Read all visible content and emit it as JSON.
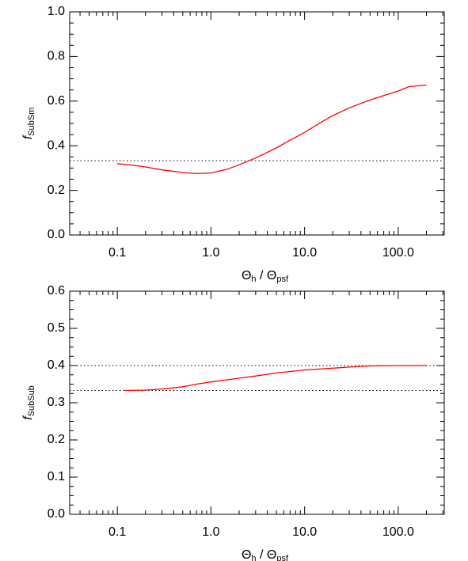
{
  "chart_data": [
    {
      "type": "line",
      "xlog": true,
      "color": "#ff0000",
      "x": [
        0.1,
        0.15,
        0.2,
        0.3,
        0.5,
        0.7,
        1.0,
        1.5,
        2,
        3,
        5,
        7,
        10,
        15,
        20,
        30,
        50,
        70,
        100,
        130,
        200
      ],
      "values": [
        0.32,
        0.312,
        0.305,
        0.292,
        0.28,
        0.275,
        0.278,
        0.295,
        0.315,
        0.345,
        0.39,
        0.425,
        0.46,
        0.505,
        0.535,
        0.57,
        0.605,
        0.625,
        0.645,
        0.665,
        0.672
      ],
      "hlines": [
        0.333
      ],
      "xlim": [
        0.031,
        310
      ],
      "ylim": [
        0,
        1.0
      ],
      "xticks": [
        0.1,
        {
          "value": 1,
          "label": "1.0"
        },
        {
          "value": 10,
          "label": "10.0"
        },
        {
          "value": 100,
          "label": "100.0"
        }
      ],
      "yticks": [
        {
          "value": 0,
          "label": "0.0"
        },
        0.2,
        0.4,
        0.6,
        0.8,
        {
          "value": 1,
          "label": "1.0"
        }
      ],
      "xlabel": [
        "Θ",
        "h",
        " / Θ",
        "psf"
      ],
      "ylabel": [
        "f",
        "SubSm"
      ]
    },
    {
      "type": "line",
      "xlog": true,
      "color": "#ff0000",
      "x": [
        0.12,
        0.2,
        0.3,
        0.5,
        0.7,
        1.0,
        1.5,
        2,
        3,
        5,
        10,
        20,
        30,
        50,
        100,
        200
      ],
      "values": [
        0.333,
        0.334,
        0.337,
        0.343,
        0.35,
        0.356,
        0.362,
        0.366,
        0.372,
        0.38,
        0.388,
        0.393,
        0.396,
        0.399,
        0.4,
        0.4
      ],
      "hlines": [
        0.4,
        0.333
      ],
      "xlim": [
        0.031,
        310
      ],
      "ylim": [
        0,
        0.6
      ],
      "xticks": [
        0.1,
        {
          "value": 1,
          "label": "1.0"
        },
        {
          "value": 10,
          "label": "10.0"
        },
        {
          "value": 100,
          "label": "100.0"
        }
      ],
      "yticks": [
        {
          "value": 0,
          "label": "0.0"
        },
        0.1,
        0.2,
        0.3,
        0.4,
        0.5,
        0.6
      ],
      "xlabel": [
        "Θ",
        "h",
        " / Θ",
        "psf"
      ],
      "ylabel": [
        "f",
        "SubSub"
      ]
    }
  ]
}
